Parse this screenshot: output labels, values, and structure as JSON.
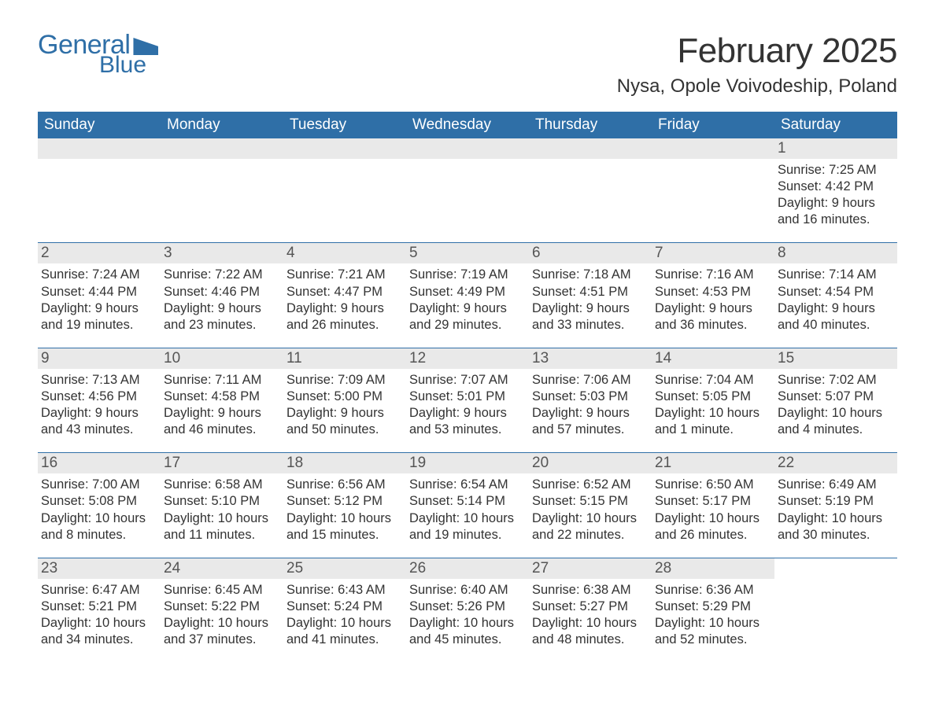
{
  "logo": {
    "line1": "General",
    "line2": "Blue"
  },
  "title": "February 2025",
  "location": "Nysa, Opole Voivodeship, Poland",
  "colors": {
    "header_blue": "#2f6fa7",
    "daynum_bg": "#e9e9e9",
    "text": "#333333",
    "bg": "#ffffff"
  },
  "typography": {
    "title_fontsize": 44,
    "location_fontsize": 24,
    "dayheader_fontsize": 19,
    "body_fontsize": 16.5
  },
  "day_headers": [
    "Sunday",
    "Monday",
    "Tuesday",
    "Wednesday",
    "Thursday",
    "Friday",
    "Saturday"
  ],
  "weeks": [
    [
      {
        "blank": true
      },
      {
        "blank": true
      },
      {
        "blank": true
      },
      {
        "blank": true
      },
      {
        "blank": true
      },
      {
        "blank": true
      },
      {
        "day": "1",
        "sunrise": "Sunrise: 7:25 AM",
        "sunset": "Sunset: 4:42 PM",
        "dl1": "Daylight: 9 hours",
        "dl2": "and 16 minutes."
      }
    ],
    [
      {
        "day": "2",
        "sunrise": "Sunrise: 7:24 AM",
        "sunset": "Sunset: 4:44 PM",
        "dl1": "Daylight: 9 hours",
        "dl2": "and 19 minutes."
      },
      {
        "day": "3",
        "sunrise": "Sunrise: 7:22 AM",
        "sunset": "Sunset: 4:46 PM",
        "dl1": "Daylight: 9 hours",
        "dl2": "and 23 minutes."
      },
      {
        "day": "4",
        "sunrise": "Sunrise: 7:21 AM",
        "sunset": "Sunset: 4:47 PM",
        "dl1": "Daylight: 9 hours",
        "dl2": "and 26 minutes."
      },
      {
        "day": "5",
        "sunrise": "Sunrise: 7:19 AM",
        "sunset": "Sunset: 4:49 PM",
        "dl1": "Daylight: 9 hours",
        "dl2": "and 29 minutes."
      },
      {
        "day": "6",
        "sunrise": "Sunrise: 7:18 AM",
        "sunset": "Sunset: 4:51 PM",
        "dl1": "Daylight: 9 hours",
        "dl2": "and 33 minutes."
      },
      {
        "day": "7",
        "sunrise": "Sunrise: 7:16 AM",
        "sunset": "Sunset: 4:53 PM",
        "dl1": "Daylight: 9 hours",
        "dl2": "and 36 minutes."
      },
      {
        "day": "8",
        "sunrise": "Sunrise: 7:14 AM",
        "sunset": "Sunset: 4:54 PM",
        "dl1": "Daylight: 9 hours",
        "dl2": "and 40 minutes."
      }
    ],
    [
      {
        "day": "9",
        "sunrise": "Sunrise: 7:13 AM",
        "sunset": "Sunset: 4:56 PM",
        "dl1": "Daylight: 9 hours",
        "dl2": "and 43 minutes."
      },
      {
        "day": "10",
        "sunrise": "Sunrise: 7:11 AM",
        "sunset": "Sunset: 4:58 PM",
        "dl1": "Daylight: 9 hours",
        "dl2": "and 46 minutes."
      },
      {
        "day": "11",
        "sunrise": "Sunrise: 7:09 AM",
        "sunset": "Sunset: 5:00 PM",
        "dl1": "Daylight: 9 hours",
        "dl2": "and 50 minutes."
      },
      {
        "day": "12",
        "sunrise": "Sunrise: 7:07 AM",
        "sunset": "Sunset: 5:01 PM",
        "dl1": "Daylight: 9 hours",
        "dl2": "and 53 minutes."
      },
      {
        "day": "13",
        "sunrise": "Sunrise: 7:06 AM",
        "sunset": "Sunset: 5:03 PM",
        "dl1": "Daylight: 9 hours",
        "dl2": "and 57 minutes."
      },
      {
        "day": "14",
        "sunrise": "Sunrise: 7:04 AM",
        "sunset": "Sunset: 5:05 PM",
        "dl1": "Daylight: 10 hours",
        "dl2": "and 1 minute."
      },
      {
        "day": "15",
        "sunrise": "Sunrise: 7:02 AM",
        "sunset": "Sunset: 5:07 PM",
        "dl1": "Daylight: 10 hours",
        "dl2": "and 4 minutes."
      }
    ],
    [
      {
        "day": "16",
        "sunrise": "Sunrise: 7:00 AM",
        "sunset": "Sunset: 5:08 PM",
        "dl1": "Daylight: 10 hours",
        "dl2": "and 8 minutes."
      },
      {
        "day": "17",
        "sunrise": "Sunrise: 6:58 AM",
        "sunset": "Sunset: 5:10 PM",
        "dl1": "Daylight: 10 hours",
        "dl2": "and 11 minutes."
      },
      {
        "day": "18",
        "sunrise": "Sunrise: 6:56 AM",
        "sunset": "Sunset: 5:12 PM",
        "dl1": "Daylight: 10 hours",
        "dl2": "and 15 minutes."
      },
      {
        "day": "19",
        "sunrise": "Sunrise: 6:54 AM",
        "sunset": "Sunset: 5:14 PM",
        "dl1": "Daylight: 10 hours",
        "dl2": "and 19 minutes."
      },
      {
        "day": "20",
        "sunrise": "Sunrise: 6:52 AM",
        "sunset": "Sunset: 5:15 PM",
        "dl1": "Daylight: 10 hours",
        "dl2": "and 22 minutes."
      },
      {
        "day": "21",
        "sunrise": "Sunrise: 6:50 AM",
        "sunset": "Sunset: 5:17 PM",
        "dl1": "Daylight: 10 hours",
        "dl2": "and 26 minutes."
      },
      {
        "day": "22",
        "sunrise": "Sunrise: 6:49 AM",
        "sunset": "Sunset: 5:19 PM",
        "dl1": "Daylight: 10 hours",
        "dl2": "and 30 minutes."
      }
    ],
    [
      {
        "day": "23",
        "sunrise": "Sunrise: 6:47 AM",
        "sunset": "Sunset: 5:21 PM",
        "dl1": "Daylight: 10 hours",
        "dl2": "and 34 minutes."
      },
      {
        "day": "24",
        "sunrise": "Sunrise: 6:45 AM",
        "sunset": "Sunset: 5:22 PM",
        "dl1": "Daylight: 10 hours",
        "dl2": "and 37 minutes."
      },
      {
        "day": "25",
        "sunrise": "Sunrise: 6:43 AM",
        "sunset": "Sunset: 5:24 PM",
        "dl1": "Daylight: 10 hours",
        "dl2": "and 41 minutes."
      },
      {
        "day": "26",
        "sunrise": "Sunrise: 6:40 AM",
        "sunset": "Sunset: 5:26 PM",
        "dl1": "Daylight: 10 hours",
        "dl2": "and 45 minutes."
      },
      {
        "day": "27",
        "sunrise": "Sunrise: 6:38 AM",
        "sunset": "Sunset: 5:27 PM",
        "dl1": "Daylight: 10 hours",
        "dl2": "and 48 minutes."
      },
      {
        "day": "28",
        "sunrise": "Sunrise: 6:36 AM",
        "sunset": "Sunset: 5:29 PM",
        "dl1": "Daylight: 10 hours",
        "dl2": "and 52 minutes."
      },
      {
        "blank": true,
        "no_header": true
      }
    ]
  ]
}
